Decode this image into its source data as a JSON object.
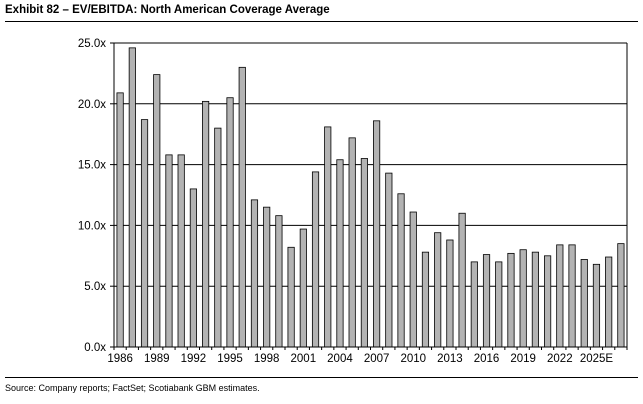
{
  "exhibit_title": "Exhibit 82 – EV/EBITDA: North American Coverage Average",
  "source": "Source: Company reports; FactSet; Scotiabank GBM estimates.",
  "chart_data": {
    "type": "bar",
    "title": "Exhibit 82 – EV/EBITDA: North American Coverage Average",
    "xlabel": "",
    "ylabel": "",
    "ylim": [
      0,
      25
    ],
    "grid": true,
    "legend": "none",
    "bar_color": "#b3b3b3",
    "bar_edge_color": "#000000",
    "y_ticks": [
      0,
      5,
      10,
      15,
      20,
      25
    ],
    "y_tick_labels": [
      "0.0x",
      "5.0x",
      "10.0x",
      "15.0x",
      "20.0x",
      "25.0x"
    ],
    "categories": [
      "1986",
      "1987",
      "1988",
      "1989",
      "1990",
      "1991",
      "1992",
      "1993",
      "1994",
      "1995",
      "1996",
      "1997",
      "1998",
      "1999",
      "2000",
      "2001",
      "2002",
      "2003",
      "2004",
      "2005",
      "2006",
      "2007",
      "2008",
      "2009",
      "2010",
      "2011",
      "2012",
      "2013",
      "2014",
      "2015",
      "2016",
      "2017",
      "2018",
      "2019",
      "2020",
      "2021",
      "2022",
      "2023",
      "2024",
      "2025E",
      "2026E"
    ],
    "values": [
      20.9,
      24.6,
      18.7,
      22.4,
      15.8,
      15.8,
      13.0,
      20.2,
      18.0,
      20.5,
      23.0,
      12.1,
      11.5,
      10.8,
      8.2,
      9.7,
      14.4,
      18.1,
      15.4,
      17.2,
      15.5,
      18.6,
      14.3,
      12.6,
      11.1,
      7.8,
      9.4,
      8.8,
      11.0,
      7.0,
      7.6,
      7.0,
      7.7,
      8.0,
      7.8,
      7.5,
      8.4,
      8.4,
      7.2,
      6.8,
      7.4
    ],
    "extra_bar_values": [
      8.5
    ],
    "x_tick_labels": [
      "1986",
      "1989",
      "1992",
      "1995",
      "1998",
      "2001",
      "2004",
      "2007",
      "2010",
      "2013",
      "2016",
      "2019",
      "2022",
      "2025E"
    ],
    "x_tick_indices": [
      0,
      3,
      6,
      9,
      12,
      15,
      18,
      21,
      24,
      27,
      30,
      33,
      36,
      39
    ]
  }
}
